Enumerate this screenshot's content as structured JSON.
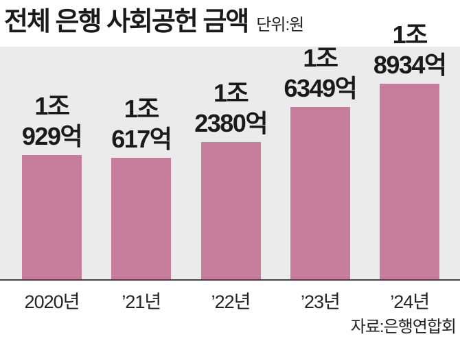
{
  "colors": {
    "bar": "#c67c9b",
    "plot_background": "#ebebeb",
    "axis_line": "#444444"
  },
  "chart_data": {
    "type": "bar",
    "title": "전체 은행 사회공헌 금액",
    "unit_note": "단위:원",
    "source": "자료:은행연합회",
    "categories": [
      "2020년",
      "’21년",
      "’22년",
      "’23년",
      "’24년"
    ],
    "values": [
      1092900000000,
      1061700000000,
      1238000000000,
      1634900000000,
      1893400000000
    ],
    "data_labels": [
      [
        "1조",
        "929억"
      ],
      [
        "1조",
        "617억"
      ],
      [
        "1조",
        "2380억"
      ],
      [
        "1조",
        "6349억"
      ],
      [
        "1조",
        "8934억"
      ]
    ],
    "xlabel": "",
    "ylabel": "",
    "grid": false,
    "legend": "none"
  }
}
